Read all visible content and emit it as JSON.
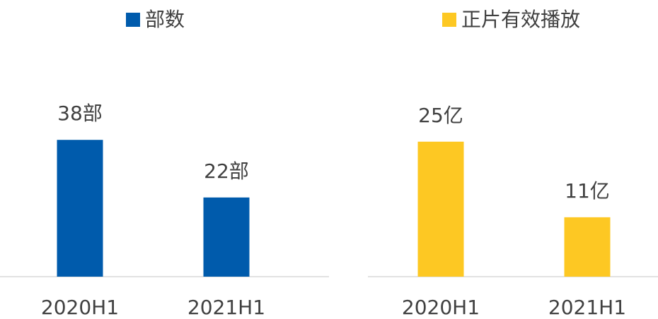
{
  "chart_data": [
    {
      "type": "bar",
      "categories": [
        "2020H1",
        "2021H1"
      ],
      "series": [
        {
          "name": "部数",
          "color": "#005bac",
          "values": [
            38,
            22
          ],
          "value_labels": [
            "38部",
            "22部"
          ]
        }
      ],
      "ylim": [
        0,
        60
      ]
    },
    {
      "type": "bar",
      "categories": [
        "2020H1",
        "2021H1"
      ],
      "series": [
        {
          "name": "正片有效播放",
          "color": "#fdc823",
          "values": [
            25,
            11
          ],
          "value_labels": [
            "25亿",
            "11亿"
          ]
        }
      ],
      "ylim": [
        0,
        40
      ]
    }
  ]
}
